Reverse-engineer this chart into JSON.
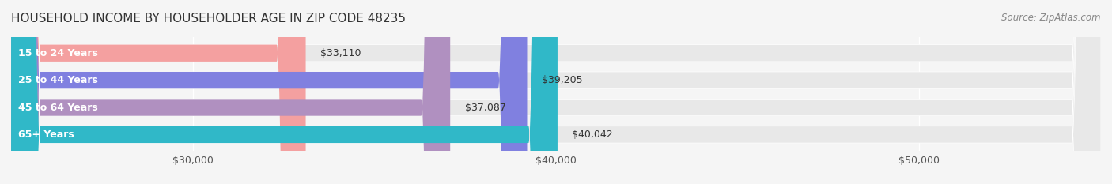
{
  "title": "HOUSEHOLD INCOME BY HOUSEHOLDER AGE IN ZIP CODE 48235",
  "source": "Source: ZipAtlas.com",
  "categories": [
    "15 to 24 Years",
    "25 to 44 Years",
    "45 to 64 Years",
    "65+ Years"
  ],
  "values": [
    33110,
    39205,
    37087,
    40042
  ],
  "bar_colors": [
    "#f4a0a0",
    "#8080e0",
    "#b090c0",
    "#30b8c8"
  ],
  "label_colors": [
    "#f4a0a0",
    "#8080e0",
    "#b090c0",
    "#30b8c8"
  ],
  "bar_labels": [
    "$33,110",
    "$39,205",
    "$37,087",
    "$40,042"
  ],
  "xmin": 25000,
  "xmax": 55000,
  "xticks": [
    30000,
    40000,
    50000
  ],
  "xtick_labels": [
    "$30,000",
    "$40,000",
    "$50,000"
  ],
  "background_color": "#f5f5f5",
  "bar_bg_color": "#e8e8e8",
  "title_fontsize": 11,
  "source_fontsize": 8.5,
  "label_fontsize": 9,
  "ytick_fontsize": 9,
  "xtick_fontsize": 9
}
